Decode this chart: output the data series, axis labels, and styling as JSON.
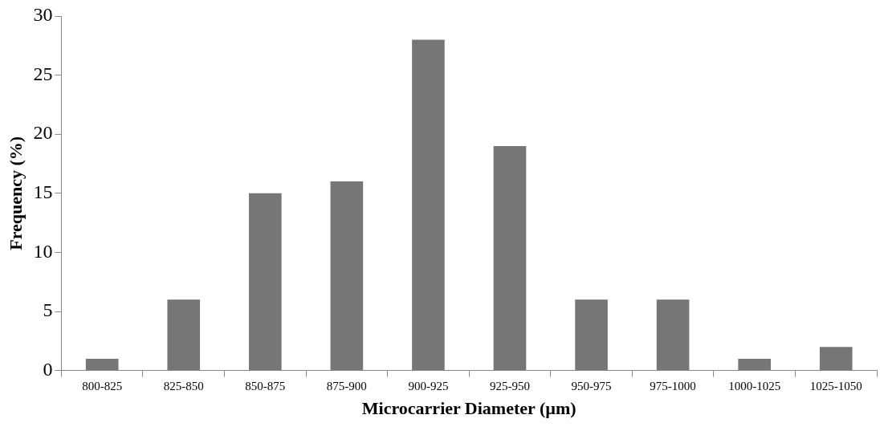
{
  "chart_data": {
    "type": "bar",
    "xlabel": "Microcarrier Diameter (µm)",
    "ylabel": "Frequency (%)",
    "categories": [
      "800-825",
      "825-850",
      "850-875",
      "875-900",
      "900-925",
      "925-950",
      "950-975",
      "975-1000",
      "1000-1025",
      "1025-1050"
    ],
    "values": [
      1,
      6,
      15,
      16,
      28,
      19,
      6,
      6,
      1,
      2
    ],
    "color": "#767676",
    "ylim": [
      0,
      30
    ],
    "yticks": [
      0,
      5,
      10,
      15,
      20,
      25,
      30
    ],
    "grid": false,
    "legend": false
  }
}
